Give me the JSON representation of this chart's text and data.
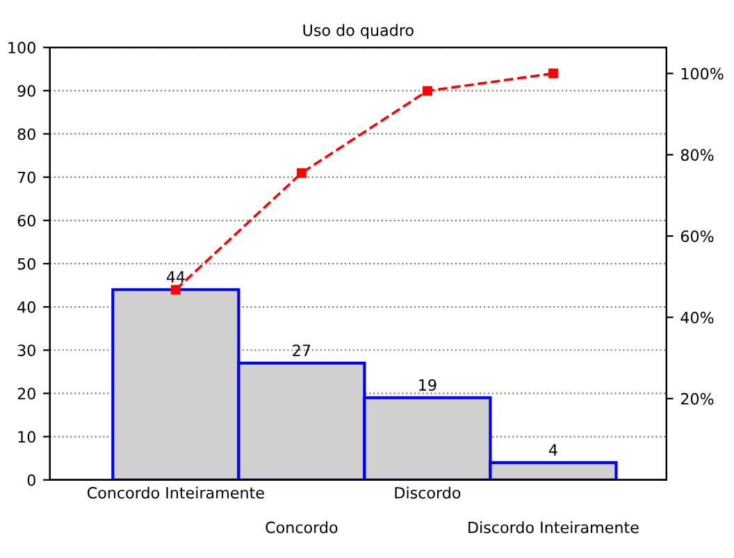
{
  "chart_data": {
    "type": "bar",
    "title": "Uso do quadro",
    "categories": [
      "Concordo Inteiramente",
      "Concordo",
      "Discordo",
      "Discordo Inteiramente"
    ],
    "series": [
      {
        "color": "#d0d0d0",
        "values": [
          44,
          27,
          19,
          4
        ],
        "value_labels": [
          "44",
          "27",
          "19",
          "4"
        ]
      },
      {
        "type": "line",
        "color": "#ff0000",
        "axis": "y2",
        "marker": "square",
        "line_style": "dashed",
        "values": [
          46.8,
          75.5,
          95.7,
          100
        ]
      }
    ],
    "ylim": [
      0,
      100
    ],
    "yticks": [
      0,
      10,
      20,
      30,
      40,
      50,
      60,
      70,
      80,
      90,
      100
    ],
    "y2lim": [
      0,
      106.4
    ],
    "y2ticks": [
      {
        "value": 20,
        "label": "20%"
      },
      {
        "value": 40,
        "label": "40%"
      },
      {
        "value": 60,
        "label": "60%"
      },
      {
        "value": 80,
        "label": "80%"
      },
      {
        "value": 100,
        "label": "100%"
      }
    ],
    "grid": "y"
  }
}
